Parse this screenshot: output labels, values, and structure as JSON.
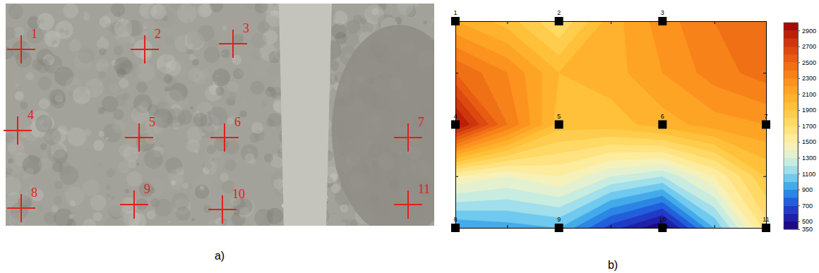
{
  "photo": {
    "caption": "a)",
    "marker_labels": [
      "1",
      "2",
      "3",
      "4",
      "5",
      "6",
      "7",
      "8",
      "9",
      "10",
      "11"
    ]
  },
  "chart_data": {
    "type": "contour",
    "title": "b)",
    "xlim": [
      0,
      3
    ],
    "ylim": [
      0,
      2
    ],
    "xticks": [
      0,
      0.5,
      1,
      1.5,
      2,
      2.5,
      3
    ],
    "yticks": [
      0,
      0.5,
      1,
      1.5,
      2
    ],
    "tick_labels": false,
    "points": {
      "labels": [
        "1",
        "2",
        "3",
        "4",
        "5",
        "6",
        "7",
        "8",
        "9",
        "10",
        "11"
      ],
      "x": [
        0,
        1,
        2,
        0,
        1,
        2,
        3,
        0,
        1,
        2,
        3
      ],
      "y": [
        2,
        2,
        2,
        1,
        1,
        1,
        1,
        0,
        0,
        0,
        0
      ]
    },
    "cell_x": [
      0,
      0.5,
      1,
      1.5,
      2,
      2.5,
      3
    ],
    "cell_y": [
      2,
      1.5,
      1,
      0.5,
      0
    ],
    "cells": [
      [
        2100,
        1950,
        1700,
        2050,
        2250,
        2400,
        2500
      ],
      [
        2500,
        2300,
        2000,
        2050,
        2200,
        2350,
        2450
      ],
      [
        2950,
        2400,
        1950,
        1950,
        2050,
        2150,
        2200
      ],
      [
        1500,
        1400,
        1500,
        1300,
        1200,
        1500,
        1900
      ],
      [
        900,
        950,
        1000,
        650,
        400,
        1000,
        1650
      ]
    ],
    "colorbar": {
      "range": [
        350,
        3000
      ],
      "ticks": [
        350,
        500,
        700,
        900,
        1100,
        1300,
        1500,
        1700,
        1900,
        2100,
        2300,
        2500,
        2700,
        2900
      ],
      "levels": [
        350,
        500,
        600,
        700,
        800,
        900,
        1000,
        1100,
        1200,
        1300,
        1400,
        1500,
        1600,
        1700,
        1800,
        1900,
        2000,
        2100,
        2200,
        2300,
        2400,
        2500,
        2600,
        2700,
        2800,
        2900,
        3000
      ]
    }
  }
}
